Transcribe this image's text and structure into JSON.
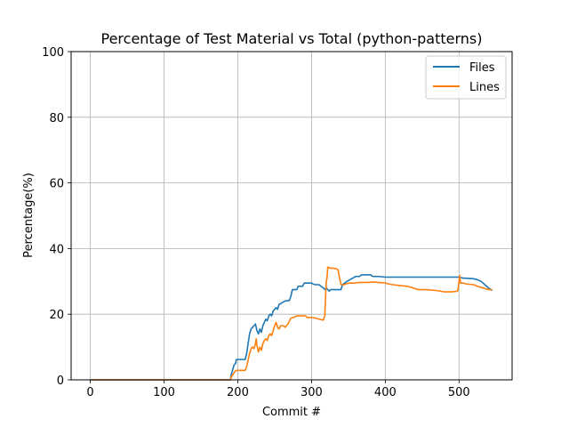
{
  "chart_data": {
    "type": "line",
    "title": "Percentage of Test Material vs Total (python-patterns)",
    "xlabel": "Commit #",
    "ylabel": "Percentage(%)",
    "xlim": [
      -26,
      572
    ],
    "ylim": [
      0,
      100
    ],
    "xticks": [
      0,
      100,
      200,
      300,
      400,
      500
    ],
    "yticks": [
      0,
      20,
      40,
      60,
      80,
      100
    ],
    "grid": true,
    "legend_position": "top-right",
    "series": [
      {
        "name": "Files",
        "color": "#1f77b4",
        "points": [
          [
            0,
            0
          ],
          [
            190,
            0
          ],
          [
            191,
            1.5
          ],
          [
            193,
            3
          ],
          [
            195,
            4.5
          ],
          [
            197,
            5
          ],
          [
            198,
            6.2
          ],
          [
            210,
            6.2
          ],
          [
            212,
            8
          ],
          [
            214,
            11
          ],
          [
            216,
            14
          ],
          [
            218,
            15.5
          ],
          [
            220,
            16
          ],
          [
            222,
            16.5
          ],
          [
            224,
            17
          ],
          [
            226,
            15
          ],
          [
            228,
            14
          ],
          [
            230,
            15.5
          ],
          [
            232,
            14.5
          ],
          [
            234,
            16.5
          ],
          [
            236,
            17.5
          ],
          [
            238,
            18.5
          ],
          [
            240,
            18
          ],
          [
            242,
            19.5
          ],
          [
            244,
            20
          ],
          [
            246,
            19.5
          ],
          [
            248,
            21
          ],
          [
            250,
            21.5
          ],
          [
            252,
            22
          ],
          [
            254,
            21.5
          ],
          [
            256,
            23
          ],
          [
            258,
            23.2
          ],
          [
            260,
            23.5
          ],
          [
            264,
            24
          ],
          [
            270,
            24.2
          ],
          [
            272,
            25.5
          ],
          [
            274,
            27.5
          ],
          [
            280,
            27.5
          ],
          [
            282,
            28.5
          ],
          [
            288,
            28.5
          ],
          [
            290,
            29.5
          ],
          [
            300,
            29.5
          ],
          [
            302,
            29.2
          ],
          [
            305,
            29
          ],
          [
            310,
            29
          ],
          [
            313,
            28.5
          ],
          [
            316,
            28
          ],
          [
            318,
            27.5
          ],
          [
            320,
            28
          ],
          [
            322,
            27.5
          ],
          [
            324,
            27
          ],
          [
            326,
            27.5
          ],
          [
            340,
            27.5
          ],
          [
            342,
            29
          ],
          [
            348,
            30
          ],
          [
            352,
            30.5
          ],
          [
            356,
            31
          ],
          [
            360,
            31.5
          ],
          [
            365,
            31.5
          ],
          [
            368,
            32
          ],
          [
            372,
            32
          ],
          [
            380,
            32
          ],
          [
            383,
            31.5
          ],
          [
            390,
            31.5
          ],
          [
            400,
            31.3
          ],
          [
            420,
            31.3
          ],
          [
            450,
            31.3
          ],
          [
            480,
            31.3
          ],
          [
            500,
            31.3
          ],
          [
            502,
            31.2
          ],
          [
            505,
            31
          ],
          [
            520,
            30.8
          ],
          [
            525,
            30.5
          ],
          [
            530,
            30
          ],
          [
            535,
            29
          ],
          [
            540,
            28
          ],
          [
            545,
            27.2
          ]
        ]
      },
      {
        "name": "Lines",
        "color": "#ff7f0e",
        "points": [
          [
            0,
            0
          ],
          [
            190,
            0
          ],
          [
            191,
            0.8
          ],
          [
            193,
            1.5
          ],
          [
            196,
            2.5
          ],
          [
            198,
            2.9
          ],
          [
            210,
            2.9
          ],
          [
            212,
            4
          ],
          [
            214,
            6
          ],
          [
            216,
            8
          ],
          [
            218,
            9.5
          ],
          [
            220,
            10
          ],
          [
            222,
            9.5
          ],
          [
            224,
            11
          ],
          [
            225,
            12.5
          ],
          [
            226,
            10.5
          ],
          [
            228,
            8.5
          ],
          [
            230,
            10
          ],
          [
            232,
            9
          ],
          [
            234,
            11
          ],
          [
            236,
            12
          ],
          [
            238,
            12.5
          ],
          [
            240,
            12
          ],
          [
            242,
            13.5
          ],
          [
            244,
            14
          ],
          [
            246,
            13.5
          ],
          [
            248,
            15
          ],
          [
            250,
            16.5
          ],
          [
            252,
            17.5
          ],
          [
            254,
            16
          ],
          [
            256,
            15.5
          ],
          [
            258,
            16.5
          ],
          [
            262,
            16.5
          ],
          [
            264,
            16
          ],
          [
            266,
            16.5
          ],
          [
            268,
            17
          ],
          [
            270,
            18
          ],
          [
            272,
            18.8
          ],
          [
            276,
            19
          ],
          [
            280,
            19.5
          ],
          [
            292,
            19.5
          ],
          [
            294,
            19
          ],
          [
            300,
            19
          ],
          [
            306,
            18.8
          ],
          [
            310,
            18.5
          ],
          [
            314,
            18.3
          ],
          [
            316,
            18.2
          ],
          [
            318,
            19.5
          ],
          [
            319,
            25
          ],
          [
            320,
            30
          ],
          [
            321,
            31
          ],
          [
            322,
            34.3
          ],
          [
            326,
            34
          ],
          [
            330,
            34
          ],
          [
            334,
            33.8
          ],
          [
            336,
            33.5
          ],
          [
            338,
            31
          ],
          [
            340,
            29
          ],
          [
            344,
            29
          ],
          [
            348,
            29.3
          ],
          [
            352,
            29.5
          ],
          [
            360,
            29.5
          ],
          [
            365,
            29.7
          ],
          [
            375,
            29.7
          ],
          [
            385,
            29.8
          ],
          [
            395,
            29.6
          ],
          [
            400,
            29.5
          ],
          [
            405,
            29.2
          ],
          [
            410,
            29
          ],
          [
            420,
            28.7
          ],
          [
            430,
            28.5
          ],
          [
            435,
            28.2
          ],
          [
            440,
            27.8
          ],
          [
            445,
            27.5
          ],
          [
            455,
            27.5
          ],
          [
            465,
            27.3
          ],
          [
            470,
            27.2
          ],
          [
            475,
            27
          ],
          [
            480,
            26.8
          ],
          [
            490,
            26.8
          ],
          [
            498,
            27
          ],
          [
            499,
            28
          ],
          [
            500,
            30
          ],
          [
            501,
            31.8
          ],
          [
            502,
            29.5
          ],
          [
            505,
            29.5
          ],
          [
            510,
            29.2
          ],
          [
            520,
            29
          ],
          [
            525,
            28.5
          ],
          [
            530,
            28.2
          ],
          [
            535,
            27.8
          ],
          [
            540,
            27.5
          ],
          [
            545,
            27.5
          ]
        ]
      }
    ]
  }
}
